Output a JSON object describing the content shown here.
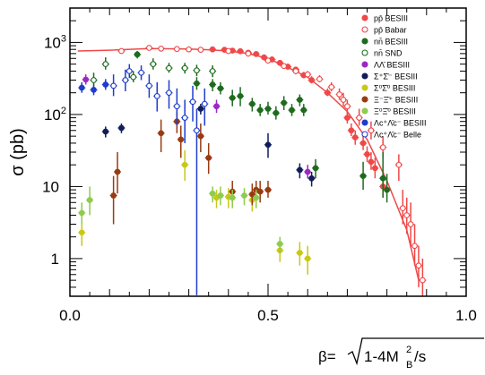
{
  "chart_data": {
    "type": "scatter",
    "title": "",
    "ylabel": "σ (pb)",
    "xlabel": {
      "prefix": "β=",
      "radicand_a": "1-4M",
      "sub": "B",
      "sup": "2",
      "radicand_b": "/s"
    },
    "xlim": [
      0.0,
      1.0
    ],
    "ylim": [
      0.3,
      3000
    ],
    "yscale": "log",
    "xticks": [
      {
        "v": 0.0,
        "label": "0.0"
      },
      {
        "v": 0.5,
        "label": "0.5"
      },
      {
        "v": 1.0,
        "label": "1.0"
      }
    ],
    "yticks": [
      {
        "v": 1,
        "label": "1"
      },
      {
        "v": 10,
        "label": "10"
      },
      {
        "v": 100,
        "label": "10",
        "exp": "2"
      },
      {
        "v": 1000,
        "label": "10",
        "exp": "3"
      }
    ],
    "grid": false,
    "legend_position": "top-right",
    "curve": {
      "color": "#f04848",
      "x": [
        0.02,
        0.1,
        0.2,
        0.3,
        0.35,
        0.4,
        0.45,
        0.5,
        0.55,
        0.6,
        0.65,
        0.7,
        0.75,
        0.8,
        0.85,
        0.88
      ],
      "y": [
        760,
        780,
        820,
        810,
        790,
        760,
        700,
        600,
        450,
        330,
        200,
        110,
        45,
        12,
        2.5,
        0.5
      ]
    },
    "series": [
      {
        "name": "pp̄ BESIII",
        "color": "#f04848",
        "fill": true,
        "points": [
          [
            0.36,
            800,
            880,
            740
          ],
          [
            0.39,
            790,
            860,
            730
          ],
          [
            0.41,
            770,
            830,
            720
          ],
          [
            0.43,
            755,
            800,
            710
          ],
          [
            0.45,
            720,
            770,
            680
          ],
          [
            0.47,
            690,
            740,
            650
          ],
          [
            0.49,
            620,
            680,
            580
          ],
          [
            0.51,
            580,
            640,
            540
          ],
          [
            0.53,
            520,
            570,
            480
          ],
          [
            0.55,
            460,
            510,
            420
          ],
          [
            0.57,
            420,
            460,
            380
          ],
          [
            0.59,
            350,
            390,
            320
          ],
          [
            0.61,
            300,
            340,
            270
          ],
          [
            0.65,
            200,
            230,
            180
          ],
          [
            0.7,
            90,
            110,
            75
          ],
          [
            0.71,
            60,
            75,
            50
          ],
          [
            0.72,
            48,
            60,
            38
          ],
          [
            0.74,
            40,
            50,
            32
          ],
          [
            0.75,
            28,
            36,
            22
          ],
          [
            0.76,
            22,
            30,
            17
          ],
          [
            0.77,
            18,
            25,
            13
          ],
          [
            0.79,
            10,
            15,
            7
          ]
        ]
      },
      {
        "name": "pp̄ Babar",
        "color": "#f04848",
        "fill": false,
        "points": [
          [
            0.13,
            760,
            790,
            730
          ],
          [
            0.2,
            840,
            880,
            800
          ],
          [
            0.23,
            820,
            860,
            780
          ],
          [
            0.27,
            810,
            850,
            770
          ],
          [
            0.3,
            800,
            840,
            760
          ],
          [
            0.33,
            790,
            820,
            760
          ],
          [
            0.4,
            760,
            800,
            720
          ],
          [
            0.45,
            700,
            740,
            660
          ],
          [
            0.5,
            560,
            600,
            520
          ],
          [
            0.54,
            470,
            510,
            430
          ],
          [
            0.57,
            400,
            440,
            360
          ],
          [
            0.6,
            360,
            400,
            320
          ],
          [
            0.63,
            310,
            350,
            280
          ],
          [
            0.66,
            240,
            280,
            210
          ],
          [
            0.68,
            190,
            230,
            160
          ],
          [
            0.69,
            160,
            200,
            130
          ],
          [
            0.7,
            130,
            160,
            100
          ],
          [
            0.73,
            90,
            120,
            70
          ],
          [
            0.76,
            60,
            80,
            45
          ],
          [
            0.79,
            35,
            50,
            25
          ],
          [
            0.83,
            20,
            28,
            12
          ],
          [
            0.84,
            5,
            9,
            3
          ],
          [
            0.85,
            4,
            7,
            2.2
          ],
          [
            0.86,
            3,
            6,
            1.5
          ],
          [
            0.87,
            1.5,
            3,
            0.8
          ],
          [
            0.88,
            0.8,
            1.5,
            0.4
          ],
          [
            0.89,
            0.5,
            1,
            0.3
          ]
        ]
      },
      {
        "name": "nn̄ BESIII",
        "color": "#1e6b1e",
        "fill": true,
        "points": [
          [
            0.17,
            680,
            760,
            600
          ],
          [
            0.32,
            270,
            330,
            220
          ],
          [
            0.36,
            260,
            310,
            210
          ],
          [
            0.38,
            230,
            280,
            190
          ],
          [
            0.41,
            170,
            220,
            130
          ],
          [
            0.43,
            180,
            240,
            130
          ],
          [
            0.46,
            140,
            170,
            110
          ],
          [
            0.48,
            115,
            140,
            95
          ],
          [
            0.5,
            120,
            150,
            100
          ],
          [
            0.52,
            105,
            130,
            85
          ],
          [
            0.54,
            145,
            180,
            115
          ],
          [
            0.56,
            115,
            140,
            95
          ],
          [
            0.58,
            160,
            190,
            130
          ],
          [
            0.59,
            115,
            140,
            95
          ],
          [
            0.62,
            18,
            24,
            13
          ],
          [
            0.74,
            14,
            22,
            9
          ],
          [
            0.79,
            13,
            30,
            7
          ],
          [
            0.8,
            9,
            15,
            6
          ]
        ]
      },
      {
        "name": "nn̄ SND",
        "color": "#1e6b1e",
        "fill": false,
        "points": [
          [
            0.06,
            300,
            380,
            250
          ],
          [
            0.09,
            500,
            620,
            420
          ],
          [
            0.16,
            330,
            400,
            280
          ],
          [
            0.21,
            500,
            600,
            420
          ],
          [
            0.25,
            440,
            520,
            380
          ],
          [
            0.29,
            440,
            520,
            370
          ],
          [
            0.32,
            410,
            490,
            340
          ],
          [
            0.36,
            400,
            480,
            330
          ]
        ]
      },
      {
        "name": "ΛΛ̄ BESIII",
        "color": "#9d27c4",
        "fill": true,
        "points": [
          [
            0.04,
            305,
            360,
            260
          ],
          [
            0.37,
            130,
            160,
            105
          ],
          [
            0.6,
            16,
            20,
            13
          ]
        ]
      },
      {
        "name": "Σ⁺Σ̄⁻ BESIII",
        "color": "#101d5a",
        "fill": true,
        "points": [
          [
            0.09,
            58,
            68,
            48
          ],
          [
            0.13,
            65,
            75,
            55
          ],
          [
            0.33,
            120,
            140,
            100
          ],
          [
            0.5,
            38,
            55,
            25
          ],
          [
            0.58,
            17,
            21,
            13
          ],
          [
            0.61,
            13,
            16,
            10
          ]
        ]
      },
      {
        "name": "Σ⁰Σ̄⁰ BESIII",
        "color": "#c8c81a",
        "fill": true,
        "points": [
          [
            0.03,
            2.3,
            3.5,
            1.5
          ],
          [
            0.29,
            20,
            32,
            12
          ],
          [
            0.37,
            7,
            9,
            5
          ],
          [
            0.4,
            7.2,
            9.5,
            5
          ],
          [
            0.46,
            6.5,
            8.5,
            4.5
          ],
          [
            0.53,
            1.3,
            1.7,
            0.9
          ],
          [
            0.58,
            1.2,
            1.7,
            0.8
          ],
          [
            0.6,
            1,
            1.5,
            0.6
          ]
        ]
      },
      {
        "name": "Ξ⁻Ξ̄⁺ BESIII",
        "color": "#9a3a10",
        "fill": true,
        "points": [
          [
            0.11,
            7.5,
            14,
            3
          ],
          [
            0.12,
            16,
            30,
            8
          ],
          [
            0.23,
            55,
            85,
            30
          ],
          [
            0.27,
            80,
            110,
            55
          ],
          [
            0.28,
            45,
            70,
            25
          ],
          [
            0.33,
            50,
            75,
            30
          ],
          [
            0.35,
            25,
            40,
            15
          ],
          [
            0.41,
            8.5,
            12,
            6
          ],
          [
            0.46,
            7.8,
            11,
            5.5
          ],
          [
            0.47,
            9,
            12,
            6.5
          ],
          [
            0.48,
            8.5,
            12,
            6
          ],
          [
            0.5,
            9,
            12,
            7
          ]
        ]
      },
      {
        "name": "Ξ⁰Ξ̄⁰ BESIII",
        "color": "#8fcb4e",
        "fill": true,
        "points": [
          [
            0.03,
            4.3,
            6,
            3
          ],
          [
            0.05,
            6.5,
            10,
            4
          ],
          [
            0.36,
            8,
            10,
            6
          ],
          [
            0.38,
            7.5,
            10,
            5.5
          ],
          [
            0.41,
            7,
            9,
            5
          ],
          [
            0.44,
            7.5,
            9.5,
            5.5
          ],
          [
            0.47,
            7,
            9,
            5
          ],
          [
            0.53,
            1.6,
            2,
            1.2
          ]
        ]
      },
      {
        "name": "Λc⁺Λ̄c⁻ BESIII",
        "color": "#1f3dcb",
        "fill": true,
        "points": [
          [
            0.03,
            235,
            280,
            200
          ],
          [
            0.06,
            220,
            260,
            185
          ],
          [
            0.09,
            260,
            310,
            220
          ]
        ]
      },
      {
        "name": "Λc⁺Λ̄c⁻ Belle",
        "color": "#1f3dcb",
        "fill": false,
        "points": [
          [
            0.11,
            250,
            360,
            180
          ],
          [
            0.14,
            300,
            420,
            210
          ],
          [
            0.15,
            400,
            500,
            320
          ],
          [
            0.18,
            380,
            480,
            300
          ],
          [
            0.2,
            250,
            360,
            170
          ],
          [
            0.22,
            180,
            280,
            110
          ],
          [
            0.25,
            200,
            300,
            120
          ],
          [
            0.27,
            130,
            230,
            70
          ],
          [
            0.29,
            90,
            160,
            40
          ],
          [
            0.31,
            150,
            250,
            80
          ],
          [
            0.32,
            60,
            120,
            0.31
          ],
          [
            0.34,
            140,
            230,
            70
          ]
        ]
      }
    ]
  }
}
